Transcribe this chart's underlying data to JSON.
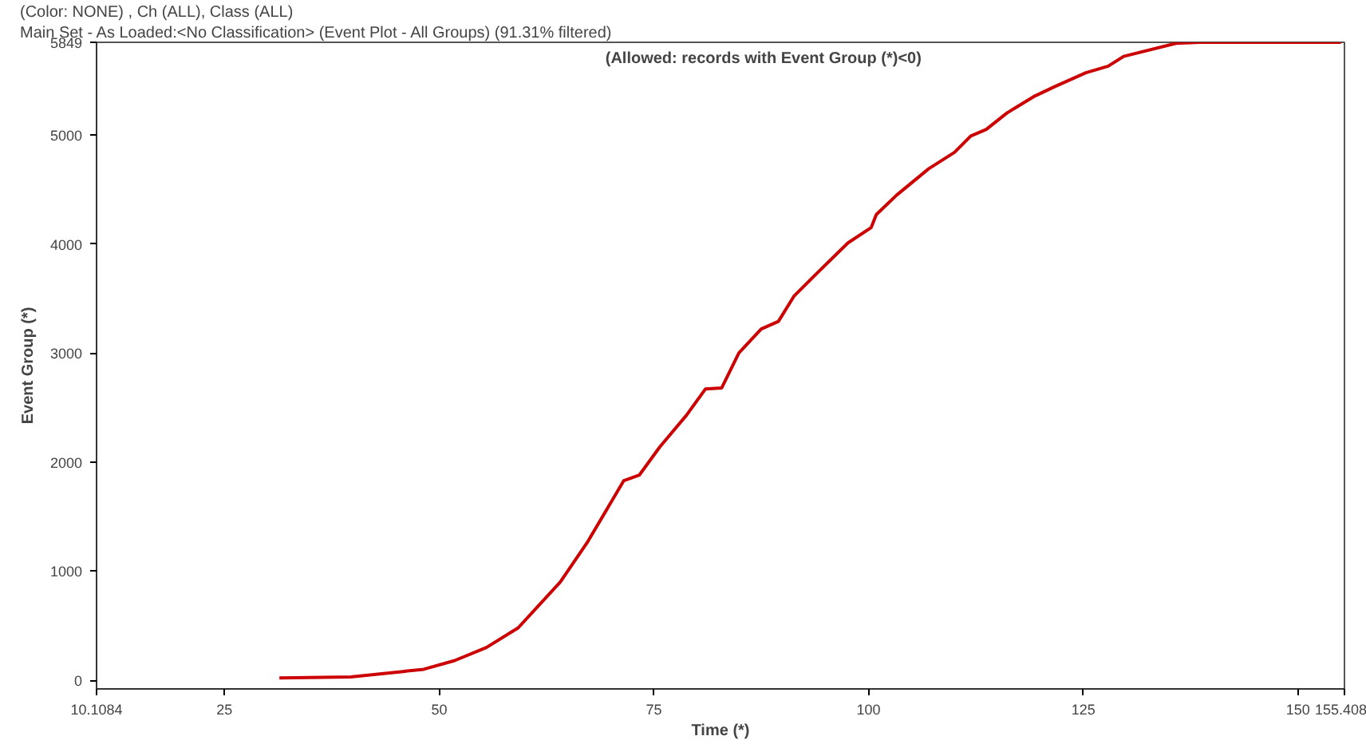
{
  "chart_data": {
    "type": "line",
    "title": "(Color: NONE) , Ch (ALL), Class (ALL)",
    "subtitle": "Main Set - As Loaded:<No Classification>  (Event Plot - All Groups) (91.31% filtered)",
    "xlabel": "Time (*)",
    "ylabel": "Event Group (*)",
    "annotations": [
      "(Allowed: records with Event Group (*)<0)"
    ],
    "x": [
      31.4,
      39.7,
      45.8,
      48.2,
      51.8,
      55.5,
      59.2,
      64.1,
      67.3,
      71.5,
      73.3,
      75.7,
      78.8,
      81,
      82.9,
      84.9,
      87.5,
      89.5,
      91.3,
      94.1,
      97.6,
      100.3,
      100.9,
      103.3,
      107,
      110,
      111.9,
      113.7,
      116.1,
      119.2,
      121.6,
      125.3,
      127.9,
      129.7,
      135.8,
      138.5,
      155
    ],
    "series": [
      {
        "color": "#cc0000",
        "values": [
          20,
          30,
          80,
          100,
          180,
          300,
          480,
          900,
          1270,
          1830,
          1880,
          2140,
          2430,
          2670,
          2680,
          3000,
          3220,
          3290,
          3520,
          3740,
          4010,
          4150,
          4270,
          4450,
          4690,
          4840,
          4990,
          5050,
          5200,
          5350,
          5440,
          5570,
          5630,
          5720,
          5840,
          5849,
          5849
        ]
      }
    ],
    "xlim": [
      10.1084,
      155.408
    ],
    "ylim": [
      -80,
      5849
    ],
    "xticks": [
      {
        "value": 10.1084,
        "label": "10.1084"
      },
      25,
      50,
      75,
      100,
      125,
      150,
      {
        "value": 155.408,
        "label": "155.408"
      }
    ],
    "yticks": [
      0,
      1000,
      2000,
      3000,
      4000,
      5000,
      5849
    ],
    "grid": false,
    "marker": "none",
    "line_style": "solid"
  }
}
